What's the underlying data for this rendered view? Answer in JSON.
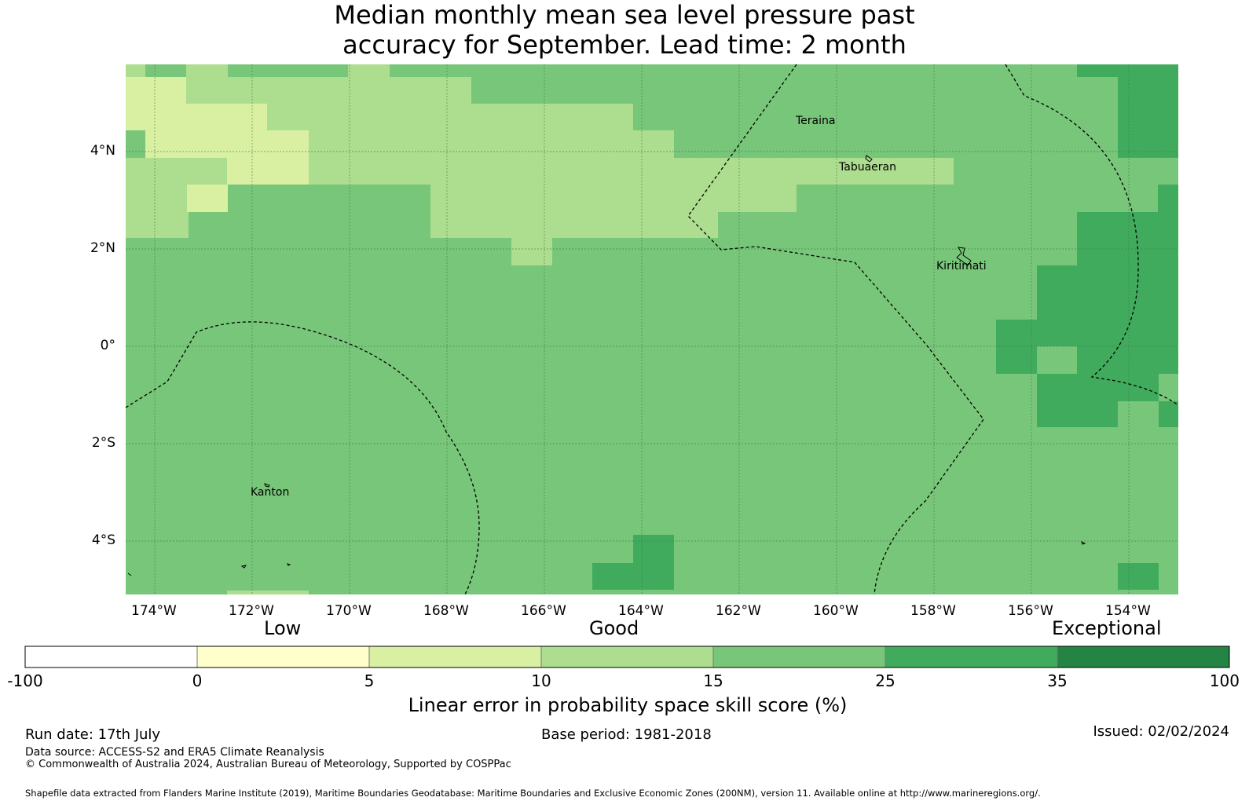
{
  "title": {
    "line1": "Median monthly mean sea level pressure past",
    "line2": "accuracy for September. Lead time: 2 month"
  },
  "map": {
    "lon_labels": [
      "174°W",
      "172°W",
      "170°W",
      "168°W",
      "166°W",
      "164°W",
      "162°W",
      "160°W",
      "158°W",
      "156°W",
      "154°W"
    ],
    "lat_labels": [
      "4°N",
      "2°N",
      "0°",
      "2°S",
      "4°S"
    ],
    "places": [
      "Teraina",
      "Tabuaeran",
      "Kiritimati",
      "Kanton"
    ],
    "lon_range": [
      -174.6,
      -153.0
    ],
    "lat_range": [
      -5.15,
      5.75
    ]
  },
  "colorbar": {
    "categories": {
      "low": "Low",
      "good": "Good",
      "exceptional": "Exceptional"
    },
    "ticks": [
      "-100",
      "0",
      "5",
      "10",
      "15",
      "25",
      "35",
      "100"
    ],
    "colors": [
      "#ffffff",
      "#ffffcc",
      "#d9f0a3",
      "#addd8e",
      "#78c679",
      "#41ab5d",
      "#238443"
    ],
    "label": "Linear error in probability space skill score (%)"
  },
  "footer": {
    "run_date": "Run date: 17th July",
    "base_period": "Base period: 1981-2018",
    "issued": "Issued: 02/02/2024",
    "source": "Data source: ACCESS-S2 and ERA5 Climate Reanalysis",
    "copyright": "© Commonwealth of Australia 2024, Australian Bureau of Meteorology, Supported by COSPPac",
    "shapefile": "Shapefile data extracted from Flanders Marine Institute (2019), Maritime Boundaries Geodatabase: Maritime Boundaries and Exclusive Economic Zones (200NM), version 11. Available online at http://www.marineregions.org/."
  }
}
